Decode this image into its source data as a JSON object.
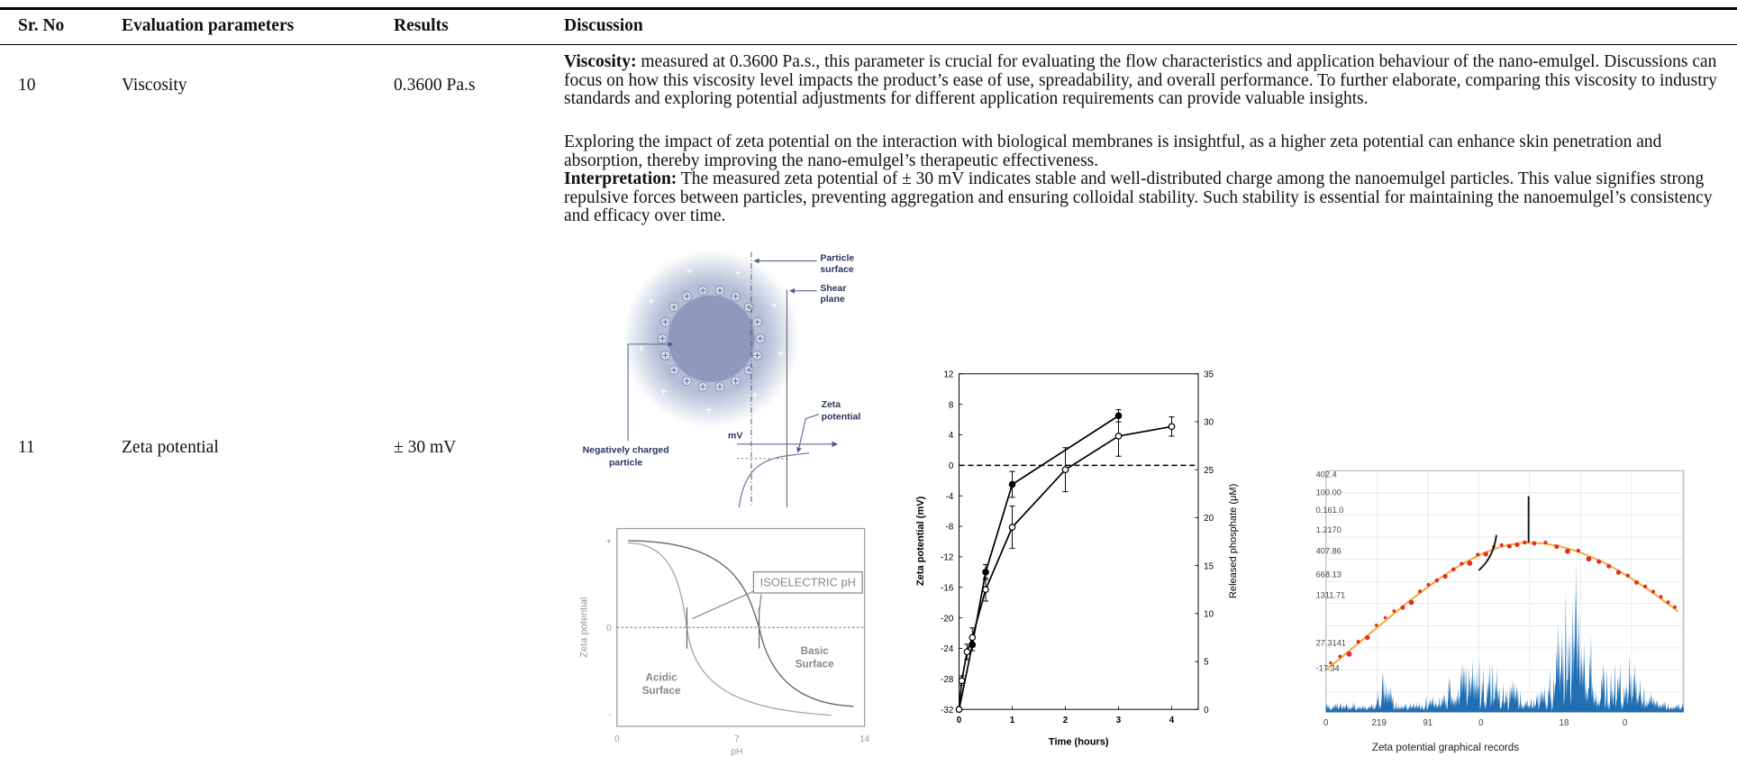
{
  "header": {
    "columns": [
      "Sr. No",
      "Evaluation parameters",
      "Results",
      "Discussion"
    ]
  },
  "table": {
    "rows": [
      {
        "sr": "10",
        "parameter": "Viscosity",
        "result": "0.3600 Pa.s",
        "discussion": {
          "lead": "Viscosity:",
          "text": "measured at 0.3600 Pa.s., this parameter is crucial for evaluating the flow characteristics and application behaviour of the nano-emulgel. Discussions can focus on how this viscosity level impacts the product’s ease of use, spreadability, and overall performance. To further elaborate, comparing this viscosity to industry standards and exploring potential adjustments for different application requirements can provide valuable insights."
        }
      },
      {
        "sr": "11",
        "parameter": "Zeta potential",
        "result": "± 30 mV",
        "discussion": {
          "intro": "Exploring the impact of zeta potential on the interaction with biological membranes is insightful, as a higher zeta potential can enhance skin penetration and absorption, thereby improving the nano-emulgel’s therapeutic effectiveness.",
          "lead": "Interpretation:",
          "text": "The measured zeta potential of ± 30 mV indicates stable and well-distributed charge among the nanoemulgel particles. This value signifies strong repulsive forces between particles, preventing aggregation and ensuring colloidal stability. Such stability is essential for maintaining the nanoemulgel’s consistency and efficacy over time."
        }
      }
    ]
  },
  "figures": {
    "particle": {
      "particle_surface": [
        "Particle",
        "surface"
      ],
      "shear_plane": [
        "Shear",
        "plane"
      ],
      "zeta_potential": [
        "Zeta",
        "potential"
      ],
      "unit": "mV",
      "particle": [
        "Negatively charged",
        "particle"
      ]
    },
    "isoelectric": {
      "label": "ISOELECTRIC pH",
      "acidic": [
        "Acidic",
        "Surface"
      ],
      "basic": [
        "Basic",
        "Surface"
      ],
      "ylabel": "Zeta potential",
      "yticks": [
        "+",
        0,
        "-"
      ],
      "xticks": [
        0,
        7,
        14
      ],
      "xlabel": "pH"
    },
    "zeta_chart": {
      "type": "line",
      "xlabel": "Time (hours)",
      "ylabel": "Zeta potential (mV)",
      "y2label": "Released phosphate (μM)",
      "xlim": [
        0,
        4.5
      ],
      "xticks": [
        0,
        1,
        2,
        3,
        4
      ],
      "ylim": [
        -32,
        12
      ],
      "yticks": [
        -32,
        -28,
        -24,
        -20,
        -16,
        -12,
        -8,
        -4,
        0,
        4,
        8,
        12
      ],
      "y2lim": [
        0,
        35
      ],
      "y2ticks": [
        0,
        5,
        10,
        15,
        20,
        25,
        30,
        35
      ],
      "reference_line": 0,
      "series": [
        {
          "marker": "filled",
          "color": "#000000",
          "x": [
            0,
            0.25,
            0.5,
            1,
            3
          ],
          "values": [
            -32,
            -23.5,
            -14,
            -2.5,
            6.5
          ],
          "errors": [
            0,
            0.8,
            1,
            1.7,
            0.8
          ]
        },
        {
          "marker": "open",
          "color": "#000000",
          "axis": "y2",
          "x": [
            0,
            0.05,
            0.15,
            0.25,
            0.5,
            1,
            2,
            3,
            4
          ],
          "values": [
            0,
            3,
            6,
            7.5,
            12.5,
            19,
            25,
            28.5,
            29.5
          ],
          "errors": [
            0,
            0.5,
            0.8,
            1,
            1.2,
            2.2,
            2.3,
            2.1,
            1
          ]
        }
      ]
    },
    "records": {
      "ylabels": [
        "402.4",
        "100.00",
        "0.161.0",
        "1.2170",
        "407.86",
        "668.13",
        "1311.71",
        "27.3141",
        "-17.34"
      ],
      "xlabels": [
        "0",
        "219",
        "91",
        "0",
        "18",
        "0"
      ],
      "caption": "Zeta potential graphical records"
    }
  }
}
